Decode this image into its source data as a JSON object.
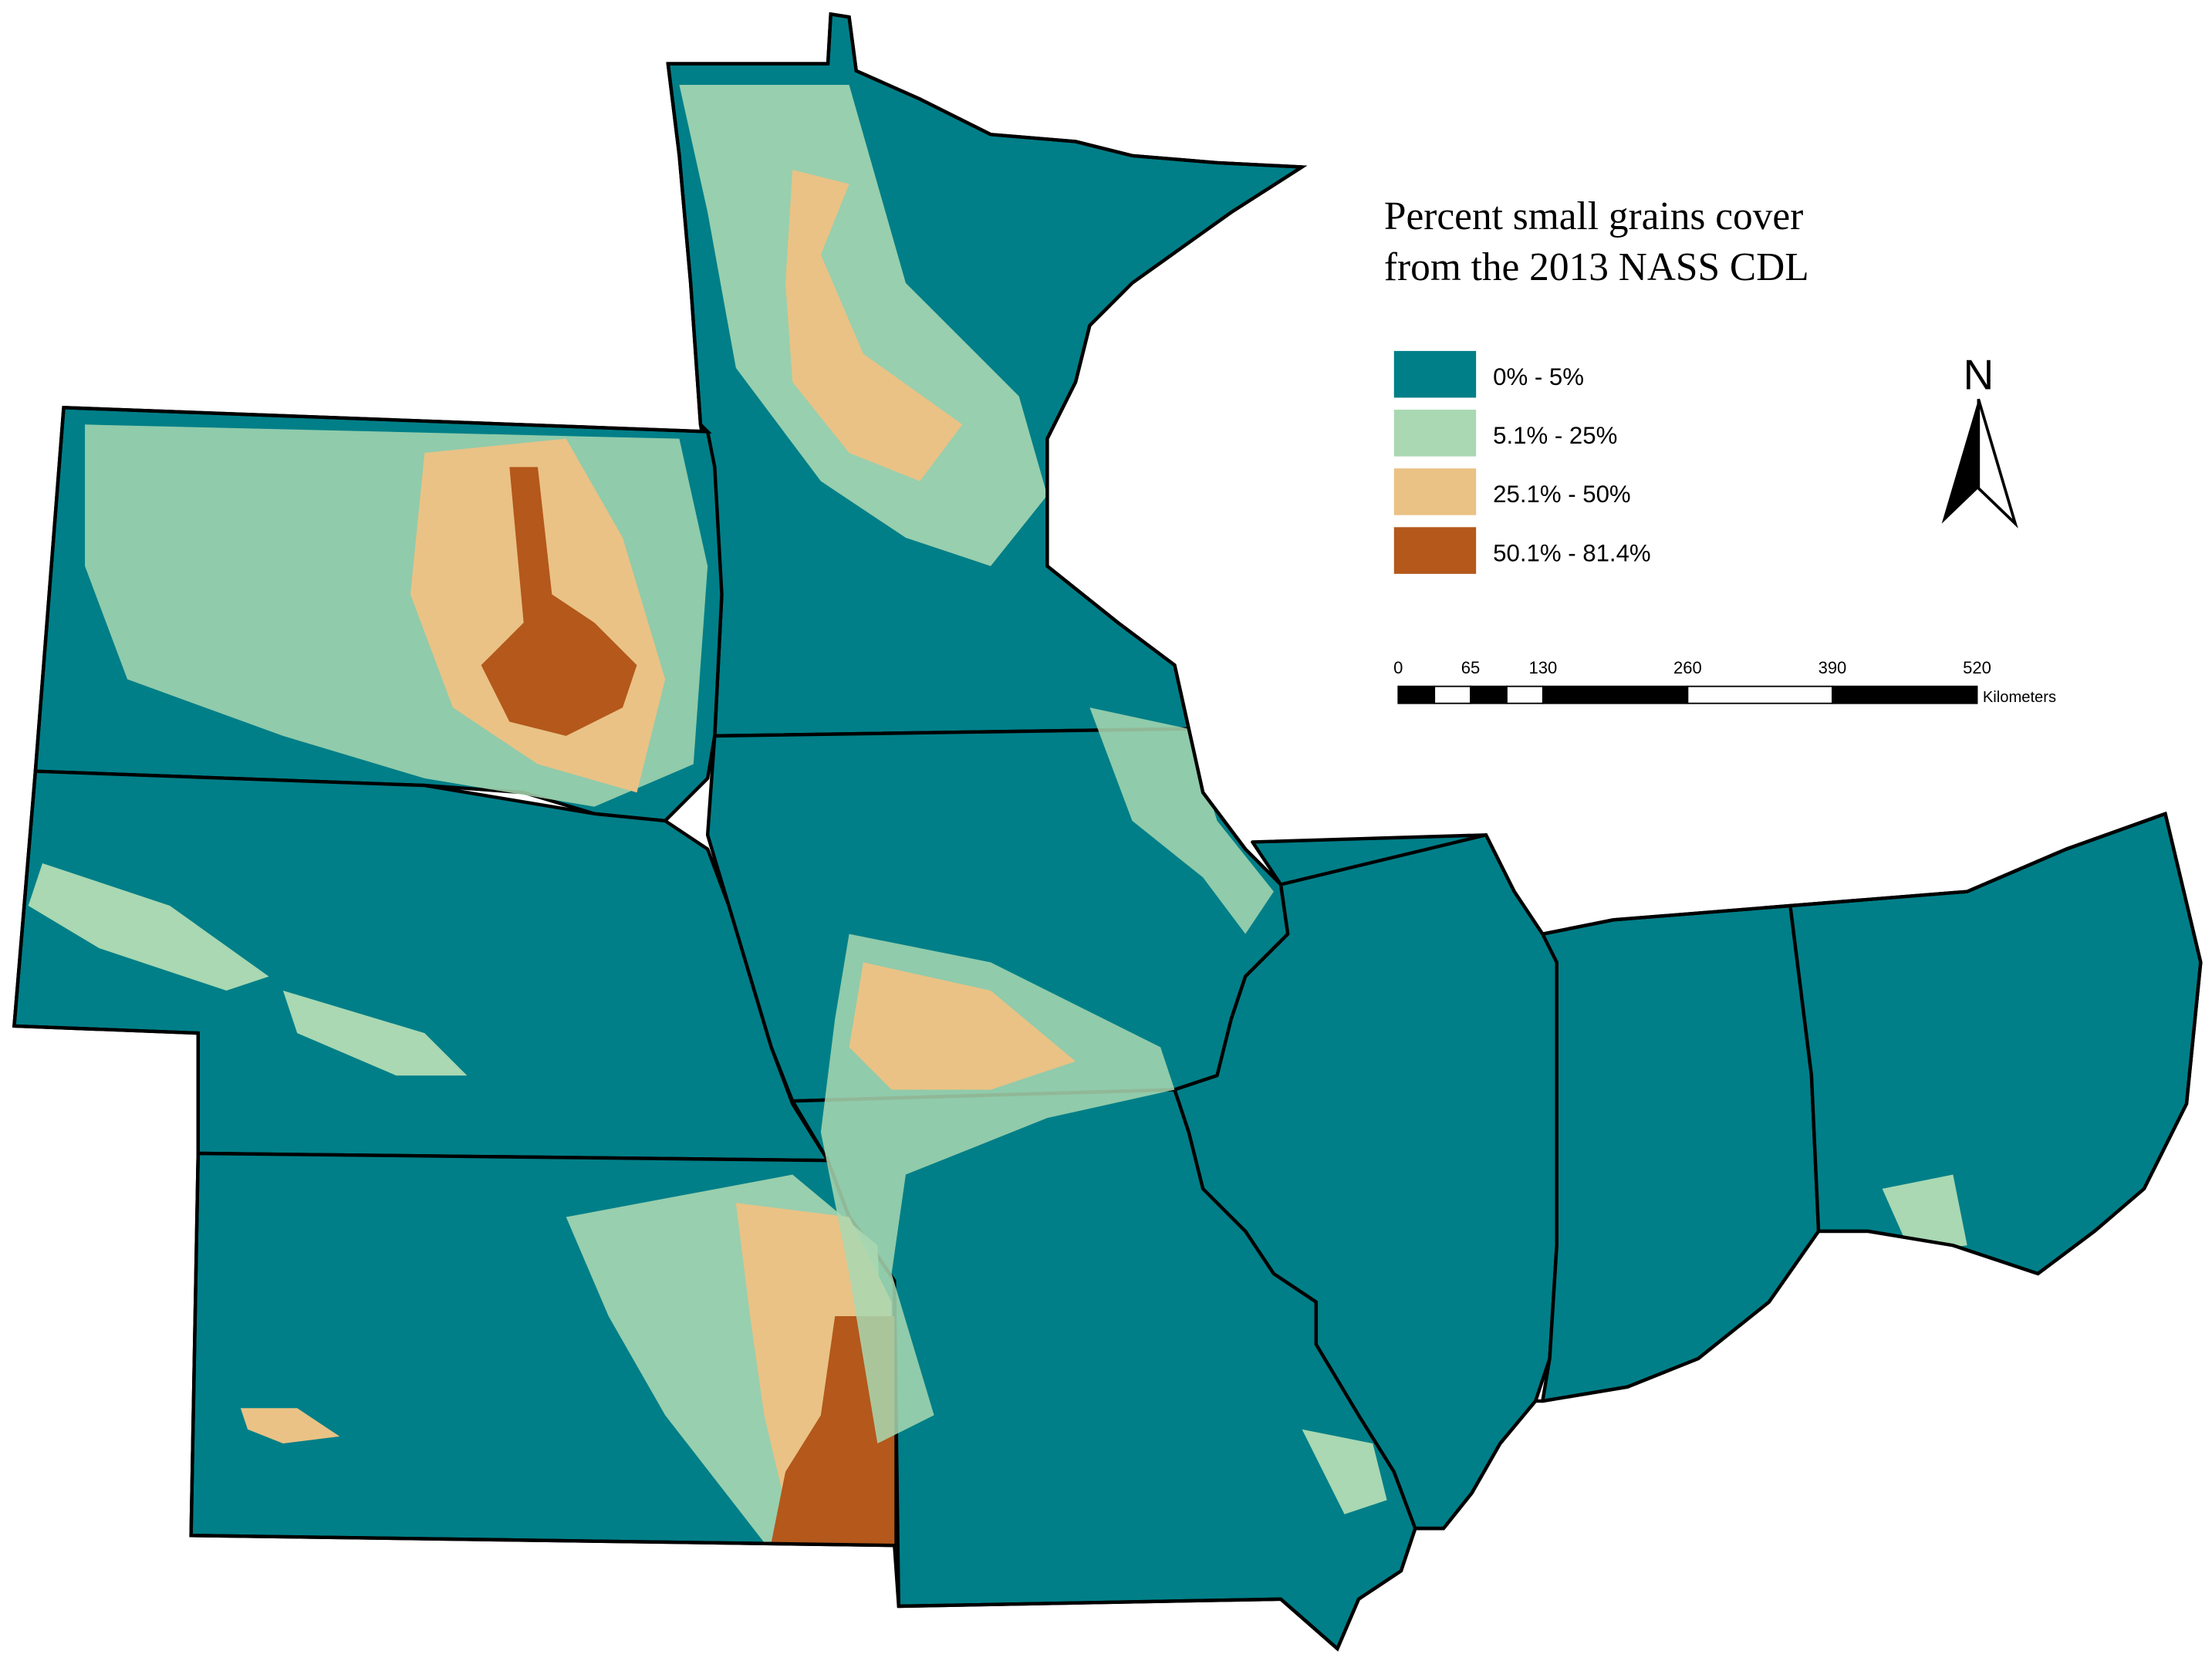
{
  "legend": {
    "title_lines": [
      "Percent small grains cover",
      "from the 2013 NASS CDL"
    ],
    "items": [
      {
        "label": "0% - 5%",
        "color": "#007f88"
      },
      {
        "label": "5.1% - 25%",
        "color": "#a9d8b2"
      },
      {
        "label": "25.1% - 50%",
        "color": "#eac285"
      },
      {
        "label": "50.1% - 81.4%",
        "color": "#b4581b"
      }
    ]
  },
  "north_arrow": {
    "label": "N"
  },
  "scale_bar": {
    "ticks": [
      0,
      65,
      130,
      260,
      390,
      520
    ],
    "unit": "Kilometers"
  }
}
